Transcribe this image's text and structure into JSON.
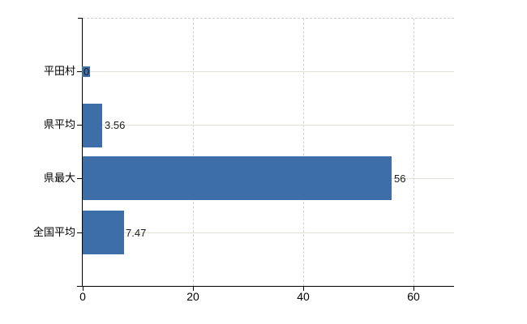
{
  "chart_data": {
    "type": "bar",
    "orientation": "horizontal",
    "title": "",
    "categories": [
      "平田村",
      "県平均",
      "県最大",
      "全国平均"
    ],
    "values": [
      0,
      3.56,
      56,
      7.47
    ],
    "value_labels": [
      "0",
      "3.56",
      "56",
      "7.47"
    ],
    "x_ticks": [
      0,
      20,
      40,
      60
    ],
    "x_tick_labels": [
      "0",
      "20",
      "40",
      "60"
    ],
    "xlim": [
      0,
      67.4
    ],
    "bar_color": "#3d6ea8",
    "gridlines": {
      "horizontal": "solid",
      "vertical": "dashed",
      "top_border": "dashed"
    },
    "legend": "none",
    "background_color": "#ffffff"
  }
}
